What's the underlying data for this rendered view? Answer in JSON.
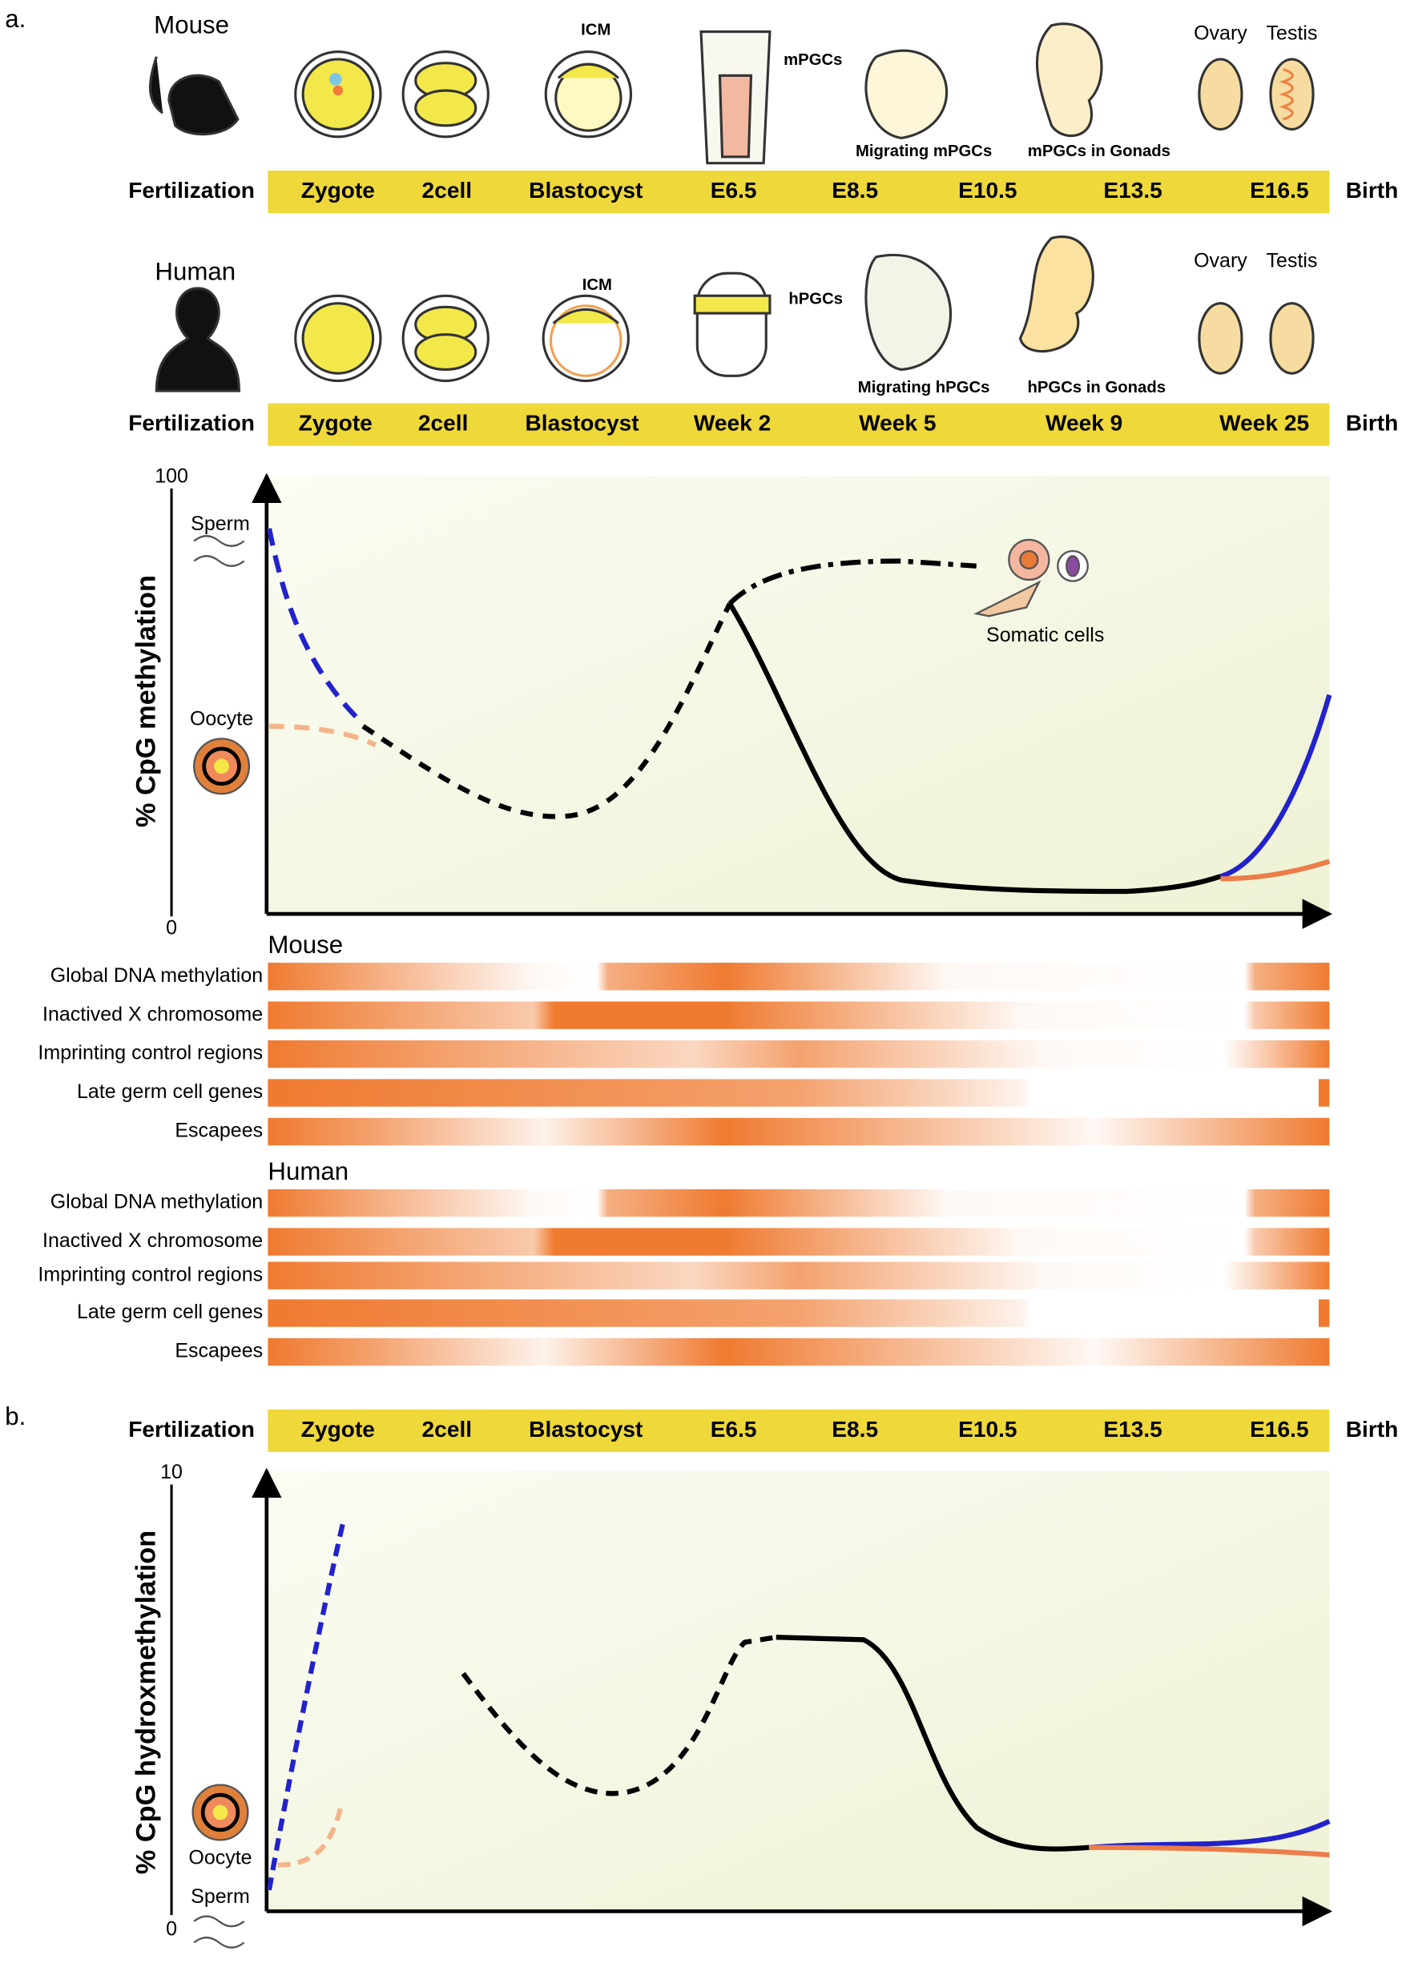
{
  "panel_a": {
    "label": "a.",
    "mouse": {
      "title": "Mouse",
      "annotations": [
        "ICM",
        "mPGCs",
        "Migrating mPGCs",
        "mPGCs in Gonads",
        "Ovary",
        "Testis"
      ],
      "timeline": [
        "Fertilization",
        "Zygote",
        "2cell",
        "Blastocyst",
        "E6.5",
        "E8.5",
        "E10.5",
        "E13.5",
        "E16.5",
        "Birth"
      ]
    },
    "human": {
      "title": "Human",
      "annotations": [
        "ICM",
        "hPGCs",
        "Migrating hPGCs",
        "hPGCs in Gonads",
        "Ovary",
        "Testis"
      ],
      "timeline": [
        "Fertilization",
        "Zygote",
        "2cell",
        "Blastocyst",
        "Week 2",
        "Week 5",
        "Week 9",
        "Week 25",
        "Birth"
      ]
    },
    "methylation_plot": {
      "y_label": "% CpG methylation",
      "y_max": "100",
      "y_min": "0",
      "labels": [
        "Sperm",
        "Oocyte",
        "Somatic cells"
      ]
    },
    "tracks": {
      "mouse": {
        "title": "Mouse",
        "rows": [
          "Global DNA methylation",
          "Inactived X chromosome",
          "Imprinting control regions",
          "Late germ cell genes",
          "Escapees"
        ]
      },
      "human": {
        "title": "Human",
        "rows": [
          "Global DNA methylation",
          "Inactived X chromosome",
          "Imprinting control regions",
          "Late germ cell genes",
          "Escapees"
        ]
      }
    }
  },
  "panel_b": {
    "label": "b.",
    "timeline": [
      "Fertilization",
      "Zygote",
      "2cell",
      "Blastocyst",
      "E6.5",
      "E8.5",
      "E10.5",
      "E13.5",
      "E16.5",
      "Birth"
    ],
    "plot": {
      "y_label": "% CpG hydroxmethylation",
      "y_max": "10",
      "y_min": "0",
      "labels": [
        "Oocyte",
        "Sperm"
      ]
    }
  }
}
